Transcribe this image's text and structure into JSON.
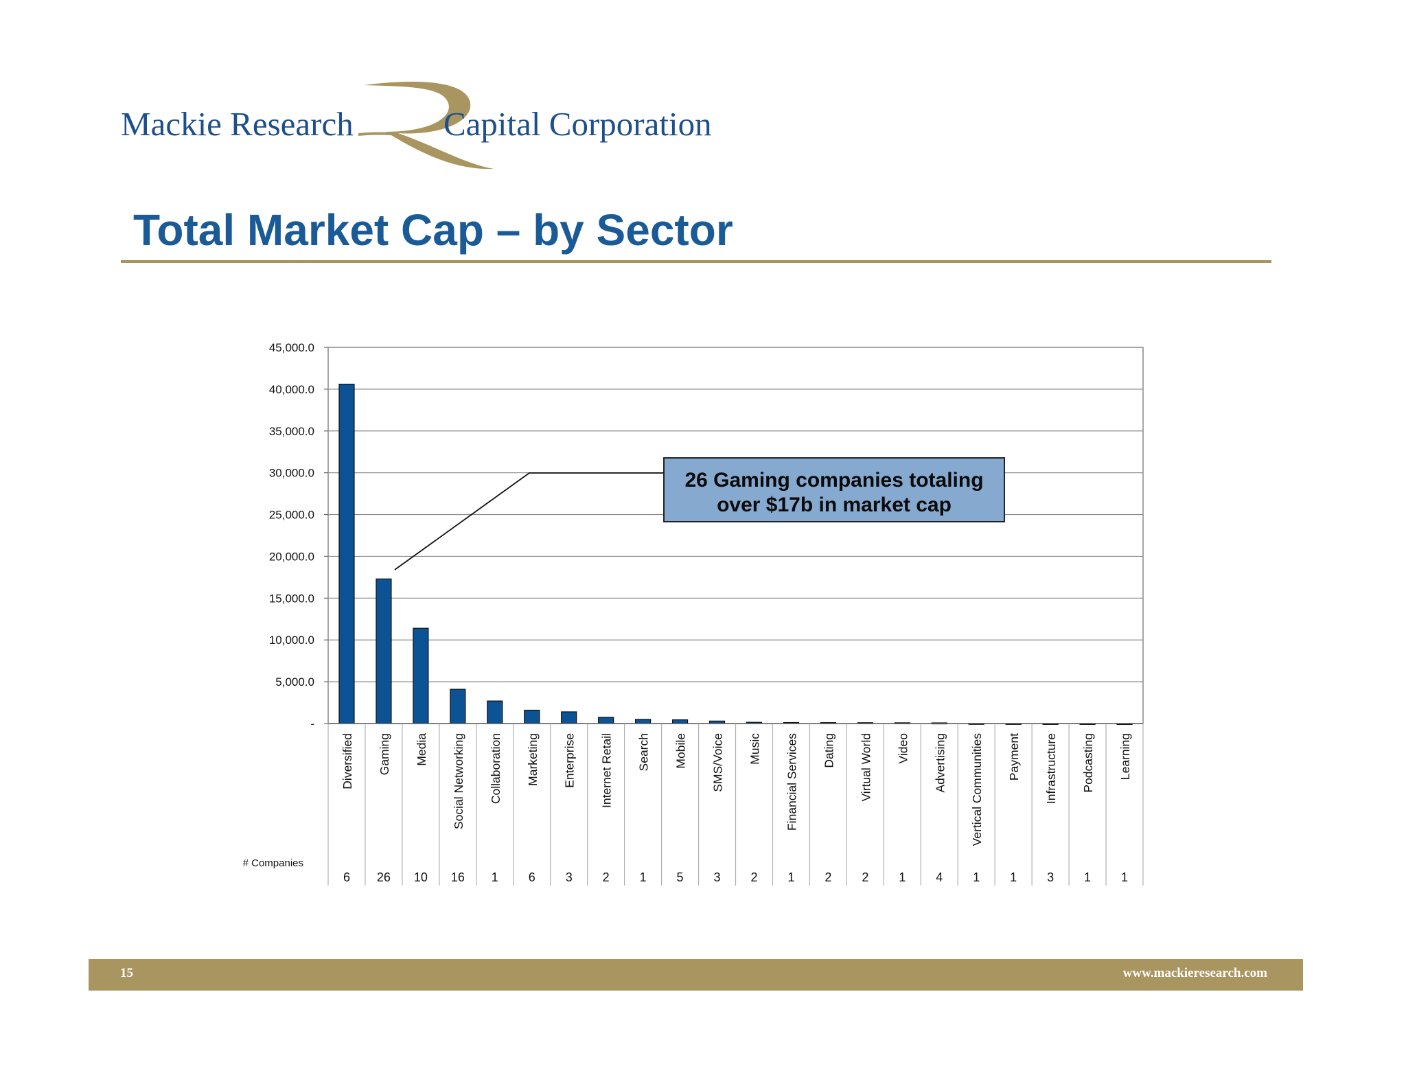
{
  "header": {
    "logo_left": "Mackie Research",
    "logo_right": "Capital Corporation"
  },
  "slide": {
    "title": "Total Market Cap – by Sector"
  },
  "colors": {
    "bar": "#0b5394",
    "title": "#1a5a96",
    "accent": "#a8955f",
    "callout": "#86a9cf"
  },
  "chart_data": {
    "type": "bar",
    "categories": [
      "Diversified",
      "Gaming",
      "Media",
      "Social Networking",
      "Collaboration",
      "Marketing",
      "Enterprise",
      "Internet Retail",
      "Search",
      "Mobile",
      "SMS/Voice",
      "Music",
      "Financial Services",
      "Dating",
      "Virtual World",
      "Video",
      "Advertising",
      "Vertical Communities",
      "Payment",
      "Infrastructure",
      "Podcasting",
      "Learning"
    ],
    "values": [
      40600,
      17300,
      11400,
      4100,
      2700,
      1600,
      1400,
      750,
      500,
      450,
      300,
      150,
      120,
      110,
      100,
      90,
      80,
      20,
      15,
      10,
      10,
      5
    ],
    "ylim": [
      0,
      45000
    ],
    "yticks": [
      "-",
      "5,000.0",
      "10,000.0",
      "15,000.0",
      "20,000.0",
      "25,000.0",
      "30,000.0",
      "35,000.0",
      "40,000.0",
      "45,000.0"
    ],
    "grid": true,
    "table_label": "# Companies",
    "companies": [
      "6",
      "26",
      "10",
      "16",
      "1",
      "6",
      "3",
      "2",
      "1",
      "5",
      "3",
      "2",
      "1",
      "2",
      "2",
      "1",
      "4",
      "1",
      "1",
      "3",
      "1",
      "1"
    ],
    "annotation": {
      "line1": "26 Gaming companies totaling",
      "line2": "over $17b in market cap",
      "target": "Gaming"
    }
  },
  "footer": {
    "page": "15",
    "website": "www.mackieresearch.com"
  }
}
